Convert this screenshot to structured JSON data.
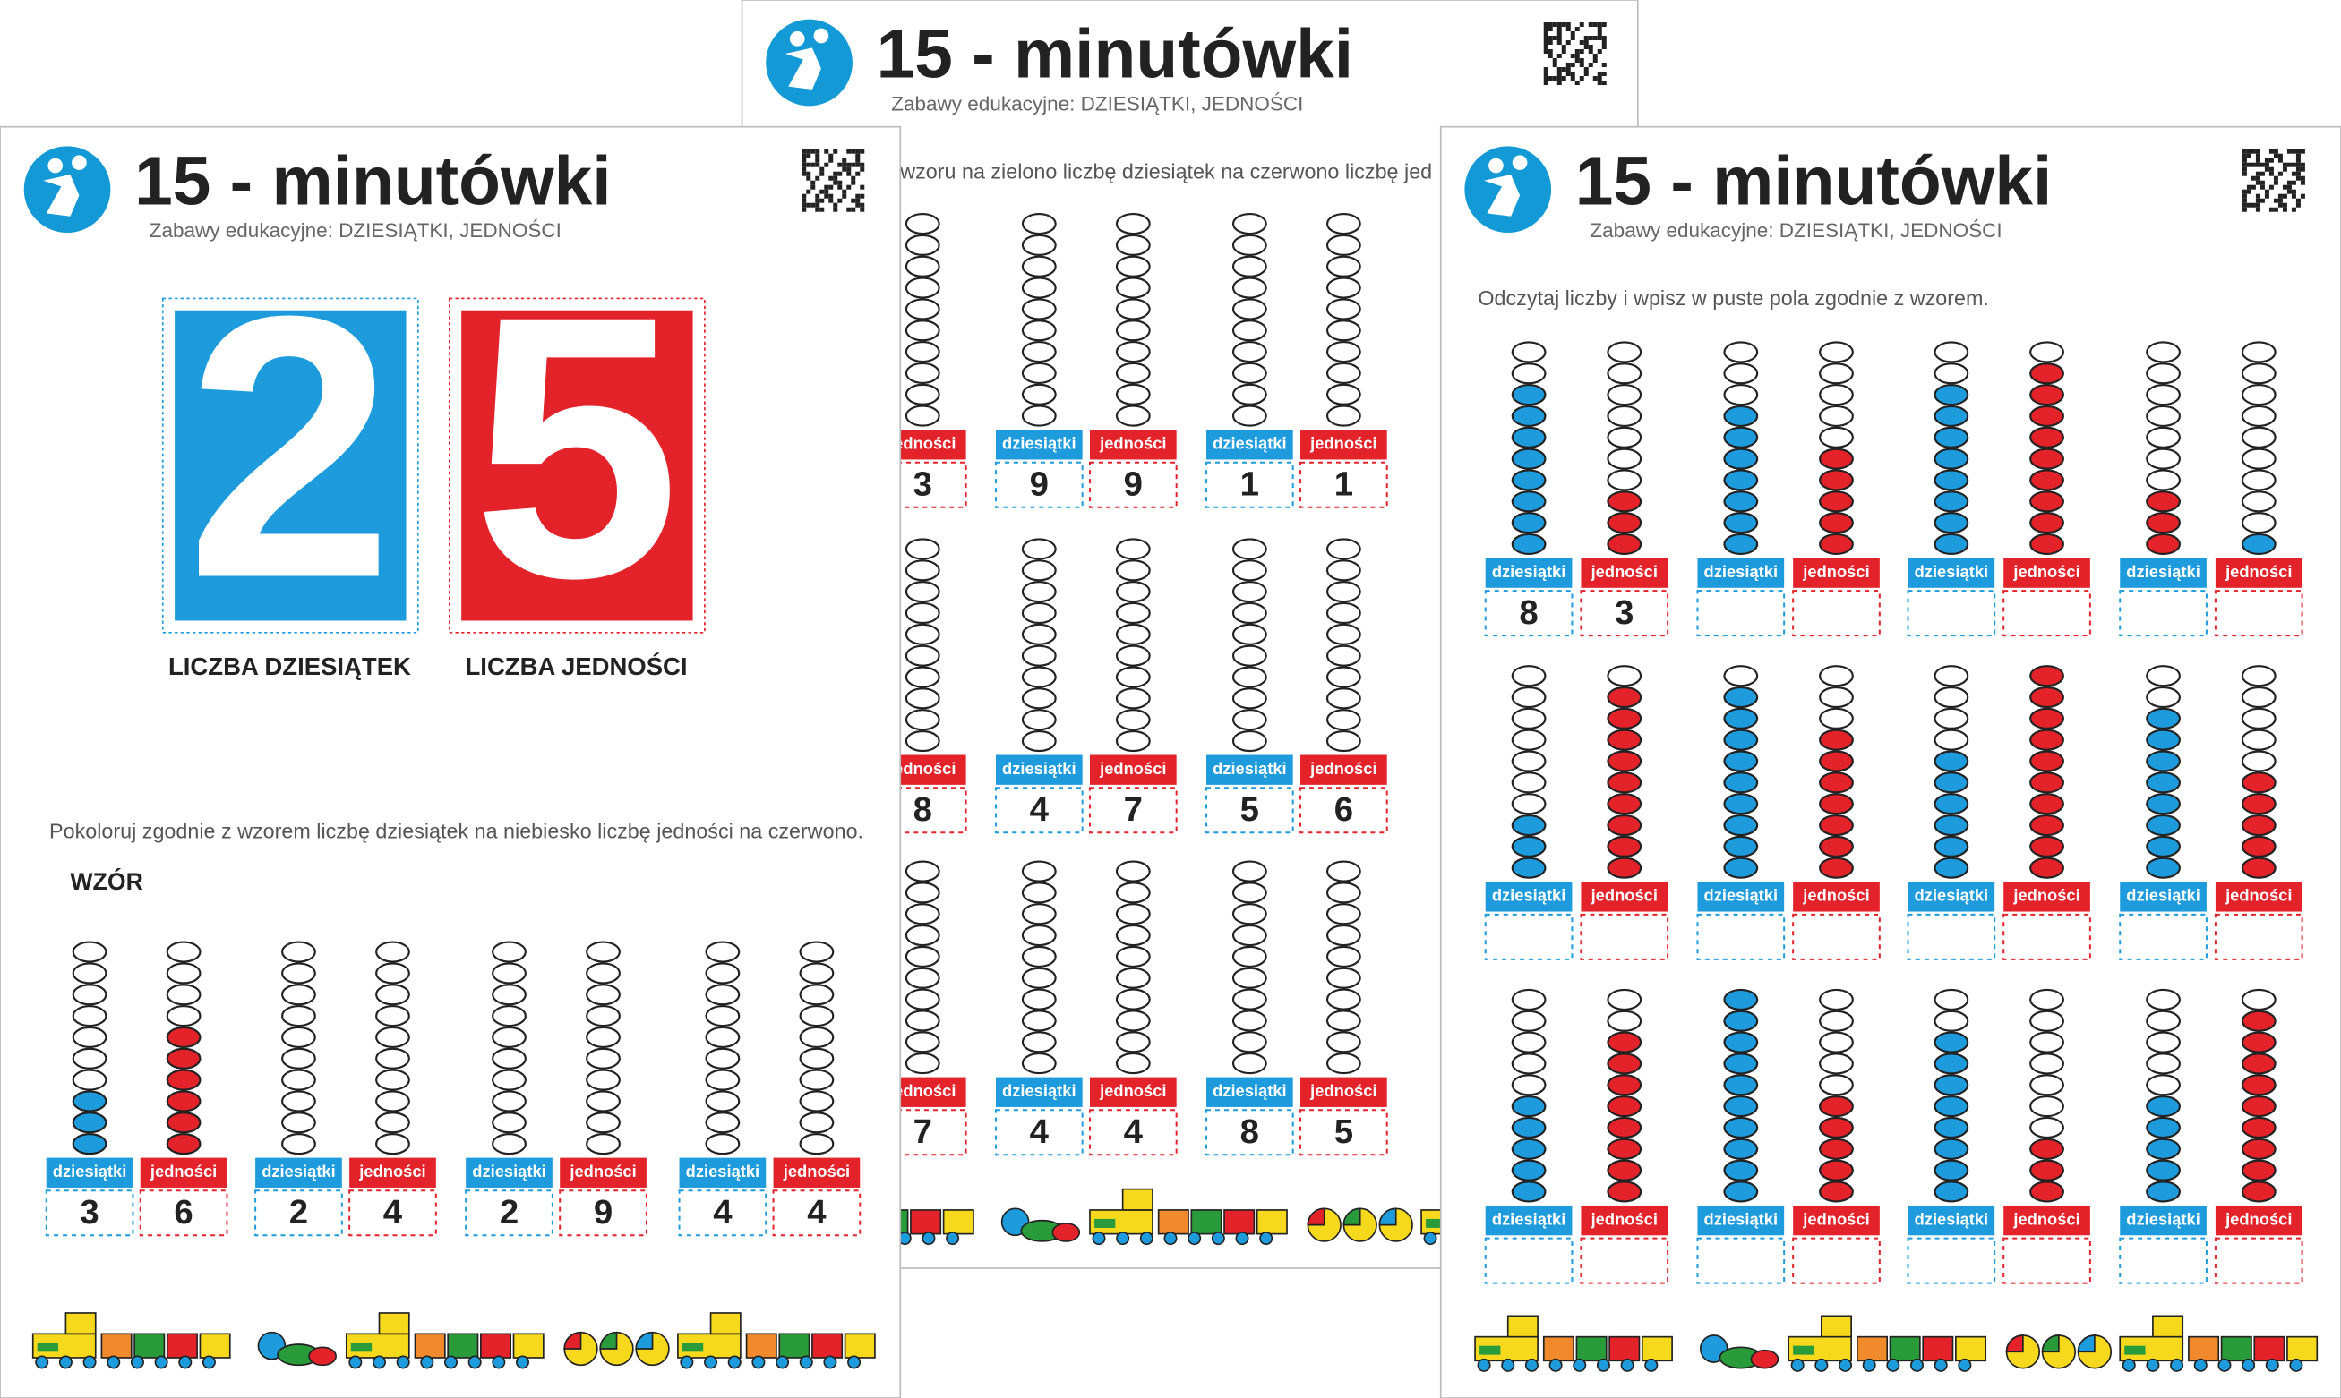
{
  "colors": {
    "blue": "#1e9bdc",
    "red": "#e3222a"
  },
  "labels": {
    "tens": "dziesiątki",
    "units": "jedności"
  },
  "back_page": {
    "title": "15 - minutówki",
    "subtitle": "Zabawy edukacyjne: DZIESIĄTKI, JEDNOŚCI",
    "instruction": "wzoru na zielono liczbę dziesiątek na czerwono liczbę jed",
    "rows": [
      [
        {
          "tens": null,
          "units": 3
        },
        {
          "tens": 9,
          "units": 9
        },
        {
          "tens": 1,
          "units": 1
        }
      ],
      [
        {
          "tens": null,
          "units": 8
        },
        {
          "tens": 4,
          "units": 7
        },
        {
          "tens": 5,
          "units": 6
        }
      ],
      [
        {
          "tens": null,
          "units": 7
        },
        {
          "tens": 4,
          "units": 4
        },
        {
          "tens": 8,
          "units": 5
        }
      ]
    ]
  },
  "left_page": {
    "title": "15 - minutówki",
    "subtitle": "Zabawy edukacyjne: DZIESIĄTKI, JEDNOŚCI",
    "big_tens": "2",
    "big_units": "5",
    "caption_tens": "LICZBA DZIESIĄTEK",
    "caption_units": "LICZBA JEDNOŚCI",
    "instruction": "Pokoloruj zgodnie z wzorem liczbę dziesiątek na niebiesko liczbę jedności na czerwono.",
    "pattern_label": "WZÓR",
    "pairs": [
      {
        "tens": 3,
        "units": 6,
        "colored": true
      },
      {
        "tens": 2,
        "units": 4,
        "colored": false
      },
      {
        "tens": 2,
        "units": 9,
        "colored": false
      },
      {
        "tens": 4,
        "units": 4,
        "colored": false
      }
    ]
  },
  "right_page": {
    "title": "15 - minutówki",
    "subtitle": "Zabawy edukacyjne: DZIESIĄTKI, JEDNOŚCI",
    "instruction": "Odczytaj liczby i wpisz w puste pola zgodnie z wzorem.",
    "rows": [
      [
        {
          "tens": {
            "count": 8,
            "color": "blue"
          },
          "units": {
            "count": 3,
            "color": "red"
          },
          "answer_tens": 8,
          "answer_units": 3
        },
        {
          "tens": {
            "count": 7,
            "color": "blue"
          },
          "units": {
            "count": 5,
            "color": "red"
          }
        },
        {
          "tens": {
            "count": 8,
            "color": "blue"
          },
          "units": {
            "count": 9,
            "color": "red"
          }
        },
        {
          "tens": {
            "count": 3,
            "color": "red"
          },
          "units": {
            "count": 1,
            "color": "blue"
          }
        }
      ],
      [
        {
          "tens": {
            "count": 3,
            "color": "blue"
          },
          "units": {
            "count": 9,
            "color": "red"
          }
        },
        {
          "tens": {
            "count": 9,
            "color": "blue"
          },
          "units": {
            "count": 7,
            "color": "red"
          }
        },
        {
          "tens": {
            "count": 6,
            "color": "blue"
          },
          "units": {
            "count": 10,
            "color": "red"
          }
        },
        {
          "tens": {
            "count": 8,
            "color": "blue"
          },
          "units": {
            "count": 5,
            "color": "red"
          }
        }
      ],
      [
        {
          "tens": {
            "count": 5,
            "color": "blue"
          },
          "units": {
            "count": 8,
            "color": "red"
          }
        },
        {
          "tens": {
            "count": 10,
            "color": "blue"
          },
          "units": {
            "count": 5,
            "color": "red"
          }
        },
        {
          "tens": {
            "count": 8,
            "color": "blue"
          },
          "units": {
            "count": 3,
            "color": "red"
          }
        },
        {
          "tens": {
            "count": 5,
            "color": "blue"
          },
          "units": {
            "count": 9,
            "color": "red"
          }
        }
      ]
    ]
  }
}
